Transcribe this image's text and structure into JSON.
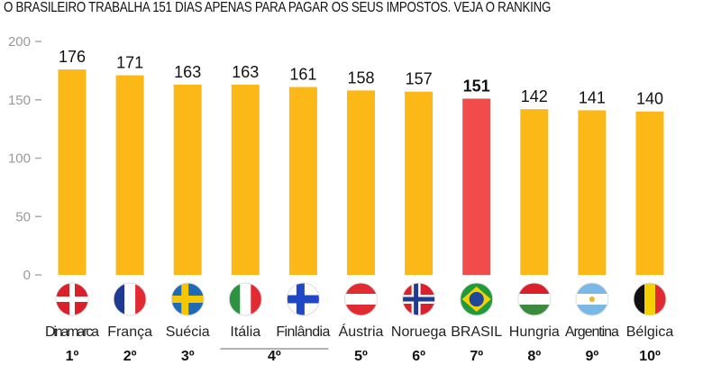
{
  "chart_data": {
    "type": "bar",
    "title": "O BRASILEIRO TRABALHA 151 DIAS APENAS PARA PAGAR OS SEUS IMPOSTOS. VEJA O RANKING",
    "categories": [
      "Dinamarca",
      "França",
      "Suécia",
      "Itália",
      "Finlândia",
      "Áustria",
      "Noruega",
      "BRASIL",
      "Hungria",
      "Argentina",
      "Bélgica"
    ],
    "values": [
      176,
      171,
      163,
      163,
      161,
      158,
      157,
      151,
      142,
      141,
      140
    ],
    "value_labels": [
      "176",
      "171",
      "163",
      "163",
      "161",
      "158",
      "157",
      "151",
      "142",
      "141",
      "140"
    ],
    "ranks": [
      {
        "label": "1º",
        "span": [
          0,
          0
        ]
      },
      {
        "label": "2º",
        "span": [
          1,
          1
        ]
      },
      {
        "label": "3º",
        "span": [
          2,
          2
        ]
      },
      {
        "label": "4º",
        "span": [
          3,
          4
        ]
      },
      {
        "label": "5º",
        "span": [
          5,
          5
        ]
      },
      {
        "label": "6º",
        "span": [
          6,
          6
        ]
      },
      {
        "label": "7º",
        "span": [
          7,
          7
        ]
      },
      {
        "label": "8º",
        "span": [
          8,
          8
        ]
      },
      {
        "label": "9º",
        "span": [
          9,
          9
        ]
      },
      {
        "label": "10º",
        "span": [
          10,
          10
        ]
      }
    ],
    "flags": [
      "denmark-flag-icon",
      "france-flag-icon",
      "sweden-flag-icon",
      "italy-flag-icon",
      "finland-flag-icon",
      "austria-flag-icon",
      "norway-flag-icon",
      "brazil-flag-icon",
      "hungary-flag-icon",
      "argentina-flag-icon",
      "belgium-flag-icon"
    ],
    "highlight_index": 7,
    "yticks": [
      "0",
      "50",
      "100",
      "150",
      "200"
    ],
    "ytick_values": [
      0,
      50,
      100,
      150,
      200
    ],
    "ylim": [
      0,
      200
    ],
    "xlabel": "",
    "ylabel": "",
    "grid": false,
    "colors": {
      "bar": "#FBB817",
      "highlight": "#F24B4B"
    }
  }
}
